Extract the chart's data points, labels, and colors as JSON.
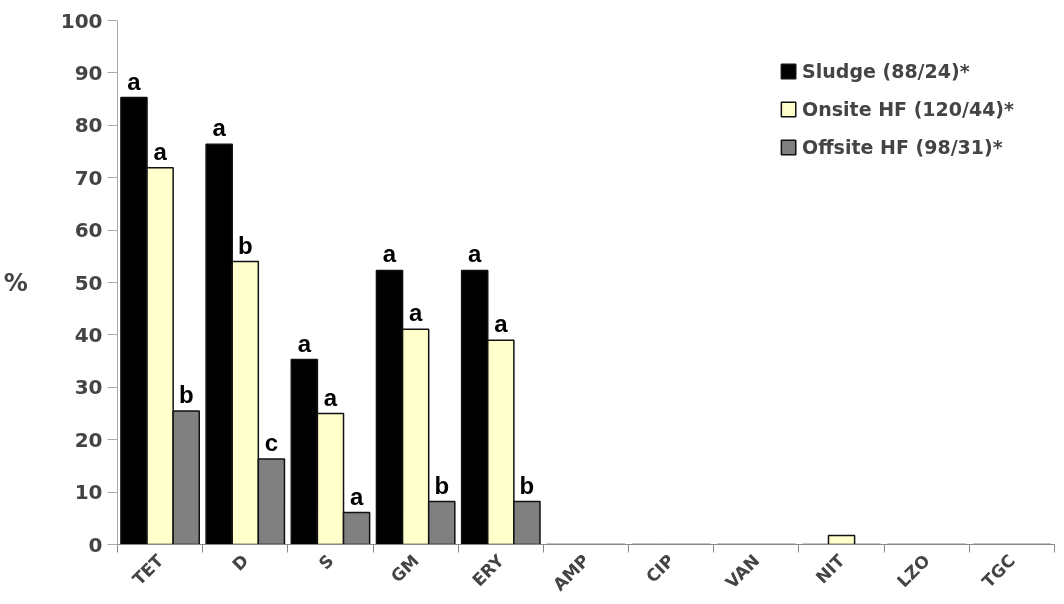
{
  "chart_data": {
    "type": "bar",
    "ylabel": "%",
    "categories": [
      "TET",
      "D",
      "S",
      "GM",
      "ERY",
      "AMP",
      "CIP",
      "VAN",
      "NIT",
      "LZO",
      "TGC"
    ],
    "series": [
      {
        "name": "Sludge (88/24)*",
        "color": "#000000",
        "values": [
          85.3,
          76.4,
          35.3,
          52.3,
          52.3,
          0,
          0,
          0,
          0,
          0,
          0
        ],
        "value_labels": [
          "a",
          "a",
          "a",
          "a",
          "a",
          null,
          null,
          null,
          null,
          null,
          null
        ]
      },
      {
        "name": "Onsite HF (120/44)*",
        "color": "#ffffcc",
        "values": [
          71.9,
          54.0,
          25.0,
          41.1,
          39.0,
          0,
          0,
          0,
          1.7,
          0,
          0
        ],
        "value_labels": [
          "a",
          "b",
          "a",
          "a",
          "a",
          null,
          null,
          null,
          null,
          null,
          null
        ]
      },
      {
        "name": "Offsite HF (98/31)*",
        "color": "#808080",
        "values": [
          25.5,
          16.3,
          6.1,
          8.2,
          8.2,
          0,
          0,
          0,
          0,
          0,
          0
        ],
        "value_labels": [
          "b",
          "c",
          "a",
          "b",
          "b",
          null,
          null,
          null,
          null,
          null,
          null
        ]
      }
    ],
    "ylim": [
      0,
      100
    ],
    "yticks": [
      0,
      10,
      20,
      30,
      40,
      50,
      60,
      70,
      80,
      90,
      100
    ],
    "grid": false,
    "legend": "top right"
  }
}
